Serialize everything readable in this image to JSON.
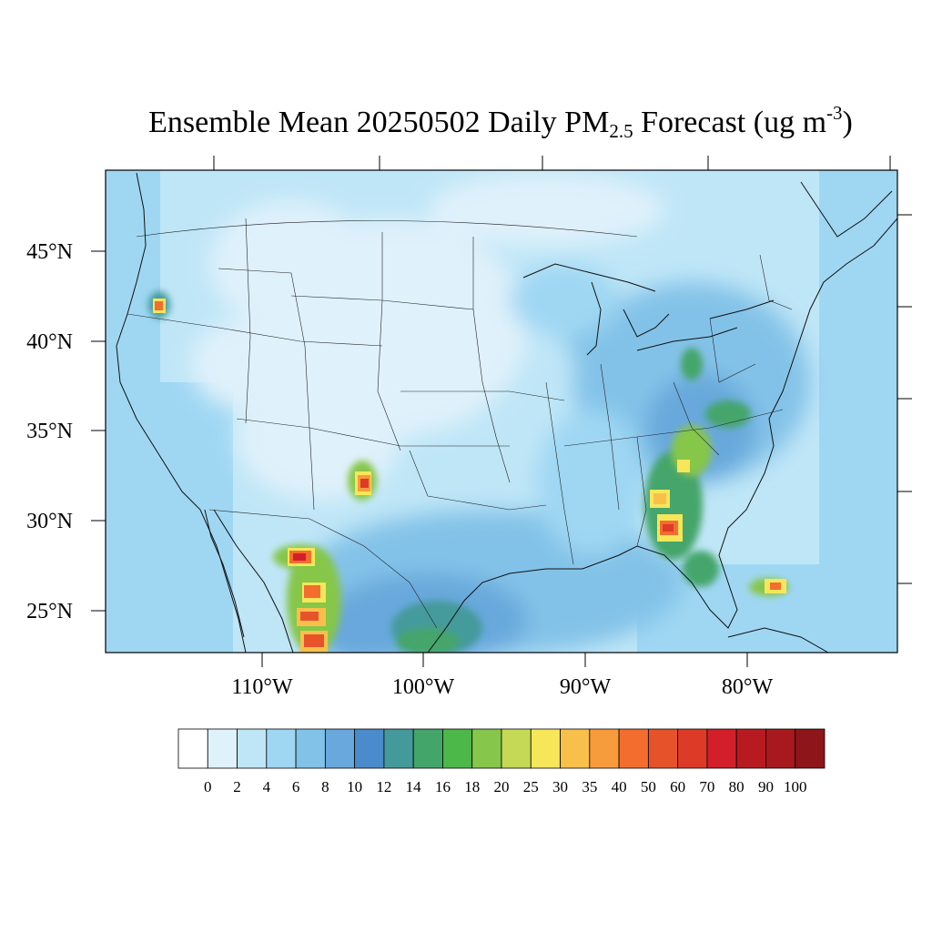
{
  "title": {
    "prefix": "Ensemble Mean 20250502 Daily PM",
    "subscript": "2.5",
    "middle": " Forecast (ug m",
    "superscript": "-3",
    "suffix": ")"
  },
  "map": {
    "lat_labels": [
      "45°N",
      "40°N",
      "35°N",
      "30°N",
      "25°N"
    ],
    "lon_labels": [
      "110°W",
      "100°W",
      "90°W",
      "80°W"
    ],
    "projection": "lambert-conformal",
    "domain": "contiguous-united-states"
  },
  "colorbar": {
    "levels": [
      "0",
      "2",
      "4",
      "6",
      "8",
      "10",
      "12",
      "14",
      "16",
      "18",
      "20",
      "25",
      "30",
      "35",
      "40",
      "50",
      "60",
      "70",
      "80",
      "90",
      "100"
    ],
    "colors": [
      "#ffffff",
      "#dff1fb",
      "#bfe6f7",
      "#9fd7f3",
      "#83c2e8",
      "#68a8dc",
      "#4a8ccb",
      "#449a9b",
      "#44a56b",
      "#4cb849",
      "#86c64a",
      "#c5d956",
      "#f6e65a",
      "#f8c04b",
      "#f79b3c",
      "#f36d2e",
      "#e6532b",
      "#de3a28",
      "#d21f2a",
      "#b81a22",
      "#a7181f",
      "#8e1519"
    ]
  }
}
